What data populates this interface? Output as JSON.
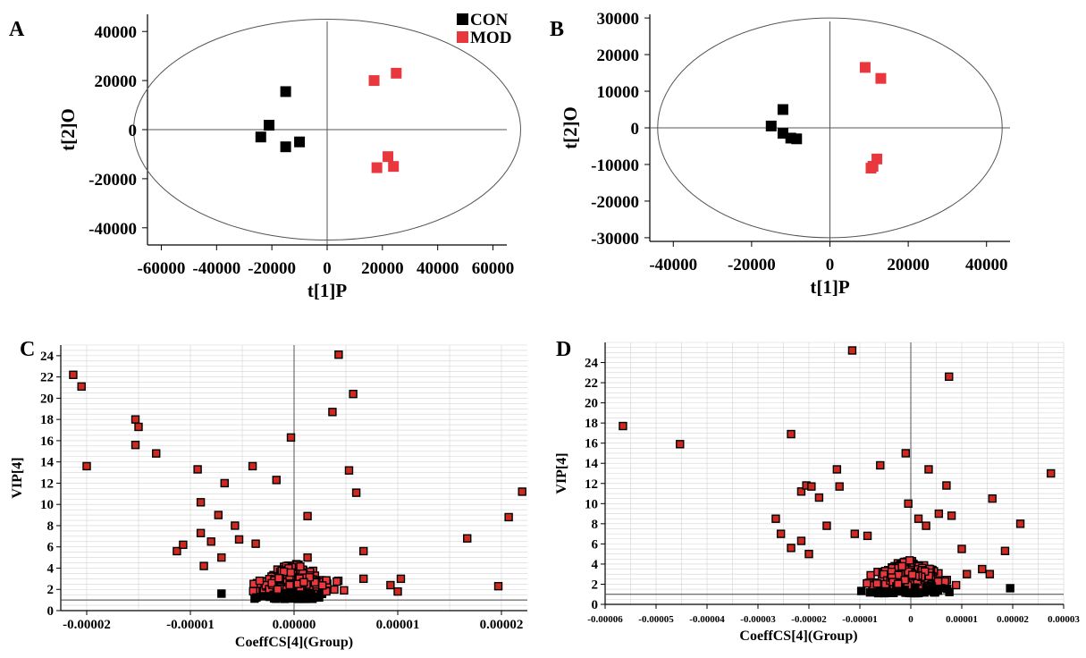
{
  "chart_data": [
    {
      "panel": "A",
      "type": "scatter",
      "xlabel": "t[1]P",
      "ylabel": "t[2]O",
      "xlim": [
        -65000,
        65000
      ],
      "ylim": [
        -47000,
        47000
      ],
      "xticks": [
        -60000,
        -40000,
        -20000,
        0,
        20000,
        40000,
        60000
      ],
      "xtick_labels": [
        "-60000",
        "-40000",
        "-20000",
        "0",
        "20000",
        "40000",
        "60000"
      ],
      "yticks": [
        -40000,
        -20000,
        0,
        20000,
        40000
      ],
      "ytick_labels": [
        "-40000",
        "-20000",
        "0",
        "20000",
        "40000"
      ],
      "ellipse": {
        "rx": 70000,
        "ry": 45000
      },
      "legend": {
        "position": "top-right",
        "entries": [
          {
            "label": "CON",
            "color": "#000000"
          },
          {
            "label": "MOD",
            "color": "#e8383d"
          }
        ]
      },
      "series": [
        {
          "name": "CON",
          "color": "#000000",
          "points": [
            [
              -15000,
              15500
            ],
            [
              -21000,
              1800
            ],
            [
              -24000,
              -3000
            ],
            [
              -10000,
              -5000
            ],
            [
              -15000,
              -7000
            ]
          ]
        },
        {
          "name": "MOD",
          "color": "#e8383d",
          "points": [
            [
              17000,
              20000
            ],
            [
              25000,
              23000
            ],
            [
              22000,
              -11000
            ],
            [
              18000,
              -15500
            ],
            [
              24000,
              -15000
            ]
          ]
        }
      ]
    },
    {
      "panel": "B",
      "type": "scatter",
      "xlabel": "t[1]P",
      "ylabel": "t[2]O",
      "xlim": [
        -46000,
        46000
      ],
      "ylim": [
        -31000,
        31000
      ],
      "xticks": [
        -40000,
        -20000,
        0,
        20000,
        40000
      ],
      "xtick_labels": [
        "-40000",
        "-20000",
        "0",
        "20000",
        "40000"
      ],
      "yticks": [
        -30000,
        -20000,
        -10000,
        0,
        10000,
        20000,
        30000
      ],
      "ytick_labels": [
        "-30000",
        "-20000",
        "-10000",
        "0",
        "10000",
        "20000",
        "30000"
      ],
      "ellipse": {
        "rx": 44000,
        "ry": 30000
      },
      "series": [
        {
          "name": "CON",
          "color": "#000000",
          "points": [
            [
              -12000,
              5000
            ],
            [
              -15000,
              500
            ],
            [
              -12000,
              -1500
            ],
            [
              -10000,
              -2800
            ],
            [
              -8500,
              -3000
            ]
          ]
        },
        {
          "name": "MOD",
          "color": "#e8383d",
          "points": [
            [
              9000,
              16500
            ],
            [
              13000,
              13500
            ],
            [
              11000,
              -10500
            ],
            [
              12000,
              -8500
            ],
            [
              10500,
              -11000
            ]
          ]
        }
      ]
    },
    {
      "panel": "C",
      "type": "scatter",
      "xlabel": "CoeffCS[4](Group)",
      "ylabel": "VIP[4]",
      "xlim": [
        -2.25e-05,
        2.25e-05
      ],
      "ylim": [
        0,
        25
      ],
      "xticks": [
        -2e-05,
        -1e-05,
        0,
        1e-05,
        2e-05
      ],
      "xtick_labels": [
        "-0.00002",
        "-0.00001",
        "0.00000",
        "0.00001",
        "0.00002"
      ],
      "yticks": [
        0,
        2,
        4,
        6,
        8,
        10,
        12,
        14,
        16,
        18,
        20,
        22,
        24
      ],
      "ytick_labels": [
        "0",
        "2",
        "4",
        "6",
        "8",
        "10",
        "12",
        "14",
        "16",
        "18",
        "20",
        "22",
        "24"
      ],
      "threshold_vip": 1,
      "grid": true,
      "dense_cluster": {
        "center_x": 0,
        "spread_x": 4.5e-06,
        "vip_min": 1,
        "vip_max": 4.5,
        "count": 420
      },
      "points": [
        [
          -2.13e-05,
          22.2
        ],
        [
          -2.05e-05,
          21.1
        ],
        [
          -2e-05,
          13.6
        ],
        [
          -1.53e-05,
          18.0
        ],
        [
          -1.5e-05,
          17.3
        ],
        [
          -1.53e-05,
          15.6
        ],
        [
          -1.33e-05,
          14.8
        ],
        [
          -1.13e-05,
          5.6
        ],
        [
          -1.07e-05,
          6.2
        ],
        [
          -9.3e-06,
          13.3
        ],
        [
          -9e-06,
          10.2
        ],
        [
          -8.7e-06,
          4.2
        ],
        [
          -9e-06,
          7.3
        ],
        [
          -8e-06,
          6.5
        ],
        [
          -7.3e-06,
          9.0
        ],
        [
          -6.7e-06,
          12.0
        ],
        [
          -7e-06,
          5.0
        ],
        [
          -5.7e-06,
          8.0
        ],
        [
          -5.3e-06,
          6.7
        ],
        [
          -4e-06,
          13.6
        ],
        [
          -3.7e-06,
          6.3
        ],
        [
          -1.7e-06,
          12.3
        ],
        [
          -3e-07,
          16.3
        ],
        [
          1.3e-06,
          5.0
        ],
        [
          1.3e-06,
          8.9
        ],
        [
          3.7e-06,
          18.7
        ],
        [
          4.3e-06,
          24.1
        ],
        [
          5.7e-06,
          20.4
        ],
        [
          5.3e-06,
          13.2
        ],
        [
          6e-06,
          11.1
        ],
        [
          6.7e-06,
          5.6
        ],
        [
          6.7e-06,
          3.0
        ],
        [
          9.3e-06,
          2.4
        ],
        [
          1e-05,
          1.8
        ],
        [
          1.03e-05,
          3.0
        ],
        [
          1.67e-05,
          6.8
        ],
        [
          1.97e-05,
          2.3
        ],
        [
          2.07e-05,
          8.8
        ],
        [
          2.2e-05,
          11.2
        ],
        [
          -7e-06,
          1.6
        ]
      ]
    },
    {
      "panel": "D",
      "type": "scatter",
      "xlabel": "CoeffCS[4](Group)",
      "ylabel": "VIP[4]",
      "xlim": [
        -6e-05,
        3e-05
      ],
      "ylim": [
        0,
        26
      ],
      "xticks": [
        -6e-05,
        -5e-05,
        -4e-05,
        -3e-05,
        -2e-05,
        -1e-05,
        0,
        1e-05,
        2e-05,
        3e-05
      ],
      "xtick_labels": [
        "-0.00006",
        "-0.00005",
        "-0.00004",
        "-0.00003",
        "-0.00002",
        "-0.00001",
        "0",
        "0.00001",
        "0.00002",
        "0.00003"
      ],
      "yticks": [
        0,
        2,
        4,
        6,
        8,
        10,
        12,
        14,
        16,
        18,
        20,
        22,
        24
      ],
      "ytick_labels": [
        "0",
        "2",
        "4",
        "6",
        "8",
        "10",
        "12",
        "14",
        "16",
        "18",
        "20",
        "22",
        "24"
      ],
      "threshold_vip": 1,
      "grid": true,
      "dense_cluster": {
        "center_x": -5e-07,
        "spread_x": 8.5e-06,
        "vip_min": 1,
        "vip_max": 4.5,
        "count": 480
      },
      "points": [
        [
          -5.65e-05,
          17.7
        ],
        [
          -4.53e-05,
          15.9
        ],
        [
          -2.65e-05,
          8.5
        ],
        [
          -2.55e-05,
          7.0
        ],
        [
          -2.35e-05,
          16.9
        ],
        [
          -2.15e-05,
          11.2
        ],
        [
          -2.05e-05,
          11.8
        ],
        [
          -1.95e-05,
          11.7
        ],
        [
          -1.8e-05,
          10.6
        ],
        [
          -2.15e-05,
          6.3
        ],
        [
          -2e-05,
          5.0
        ],
        [
          -1.65e-05,
          7.8
        ],
        [
          -1.45e-05,
          13.4
        ],
        [
          -1.4e-05,
          11.7
        ],
        [
          -1.15e-05,
          25.2
        ],
        [
          -1.1e-05,
          7.0
        ],
        [
          -8.5e-06,
          6.8
        ],
        [
          -6e-06,
          13.8
        ],
        [
          -1e-06,
          15.0
        ],
        [
          -5e-07,
          10.0
        ],
        [
          1.5e-06,
          8.5
        ],
        [
          3.5e-06,
          13.4
        ],
        [
          3e-06,
          7.8
        ],
        [
          5.5e-06,
          9.0
        ],
        [
          8e-06,
          8.8
        ],
        [
          7.5e-06,
          22.6
        ],
        [
          7e-06,
          11.8
        ],
        [
          1e-05,
          5.5
        ],
        [
          1.1e-05,
          3.0
        ],
        [
          1.4e-05,
          3.5
        ],
        [
          1.55e-05,
          3.0
        ],
        [
          1.6e-05,
          10.5
        ],
        [
          1.85e-05,
          5.3
        ],
        [
          1.95e-05,
          1.6
        ],
        [
          2.15e-05,
          8.0
        ],
        [
          2.75e-05,
          13.0
        ],
        [
          -2.35e-05,
          5.6
        ]
      ]
    }
  ]
}
